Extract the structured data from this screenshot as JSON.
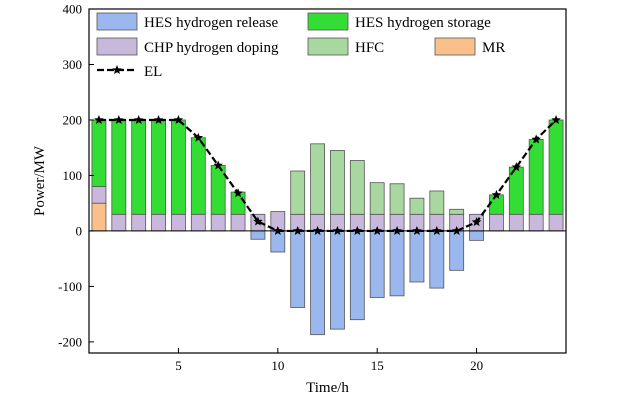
{
  "chart_data": {
    "type": "bar",
    "xlabel": "Time/h",
    "ylabel": "Power/MW",
    "xlim": [
      0.5,
      24.5
    ],
    "ylim": [
      -220,
      400
    ],
    "x_ticks": [
      5,
      10,
      15,
      20
    ],
    "y_ticks": [
      -200,
      -100,
      0,
      100,
      200,
      300,
      400
    ],
    "grid": false,
    "legend_position": "top",
    "x": [
      1,
      2,
      3,
      4,
      5,
      6,
      7,
      8,
      9,
      10,
      11,
      12,
      13,
      14,
      15,
      16,
      17,
      18,
      19,
      20,
      21,
      22,
      23,
      24
    ],
    "stacked_series": [
      {
        "name": "MR",
        "color": "#f9c08c",
        "stack": "positive",
        "values": [
          50,
          0,
          0,
          0,
          0,
          0,
          0,
          0,
          0,
          0,
          0,
          0,
          0,
          0,
          0,
          0,
          0,
          0,
          0,
          0,
          0,
          0,
          0,
          0
        ]
      },
      {
        "name": "CHP hydrogen doping",
        "color": "#c8b8dc",
        "stack": "positive",
        "values": [
          30,
          30,
          30,
          30,
          30,
          30,
          30,
          30,
          30,
          35,
          30,
          30,
          30,
          30,
          30,
          30,
          30,
          30,
          30,
          30,
          30,
          30,
          30,
          30
        ]
      },
      {
        "name": "HES hydrogen storage",
        "color": "#33dd33",
        "stack": "positive",
        "values": [
          120,
          170,
          170,
          170,
          170,
          138,
          88,
          40,
          0,
          0,
          0,
          0,
          0,
          0,
          0,
          0,
          0,
          0,
          0,
          0,
          35,
          85,
          135,
          170
        ]
      },
      {
        "name": "HFC",
        "color": "#a8d8a0",
        "stack": "positive",
        "values": [
          0,
          0,
          0,
          0,
          0,
          0,
          0,
          0,
          0,
          0,
          78,
          127,
          115,
          97,
          57,
          55,
          29,
          42,
          9,
          0,
          0,
          0,
          0,
          0
        ]
      },
      {
        "name": "HES hydrogen release",
        "color": "#9ab7ee",
        "stack": "negative",
        "values": [
          0,
          0,
          0,
          0,
          0,
          0,
          0,
          0,
          -15,
          -38,
          -138,
          -187,
          -177,
          -160,
          -120,
          -117,
          -92,
          -103,
          -71,
          -17,
          0,
          0,
          0,
          0
        ]
      }
    ],
    "line_series": {
      "name": "EL",
      "color": "#000000",
      "marker": "star",
      "values": [
        200,
        200,
        200,
        200,
        200,
        168,
        118,
        68,
        17,
        0,
        0,
        0,
        0,
        0,
        0,
        0,
        0,
        0,
        0,
        16,
        65,
        115,
        165,
        200
      ]
    },
    "legend_items": [
      {
        "label": "HES hydrogen release",
        "color": "#9ab7ee",
        "kind": "box"
      },
      {
        "label": "HES hydrogen storage",
        "color": "#33dd33",
        "kind": "box"
      },
      {
        "label": "CHP hydrogen doping",
        "color": "#c8b8dc",
        "kind": "box"
      },
      {
        "label": "HFC",
        "color": "#a8d8a0",
        "kind": "box"
      },
      {
        "label": "MR",
        "color": "#f9c08c",
        "kind": "box"
      },
      {
        "label": "EL",
        "color": "#000000",
        "kind": "line-star"
      }
    ]
  }
}
